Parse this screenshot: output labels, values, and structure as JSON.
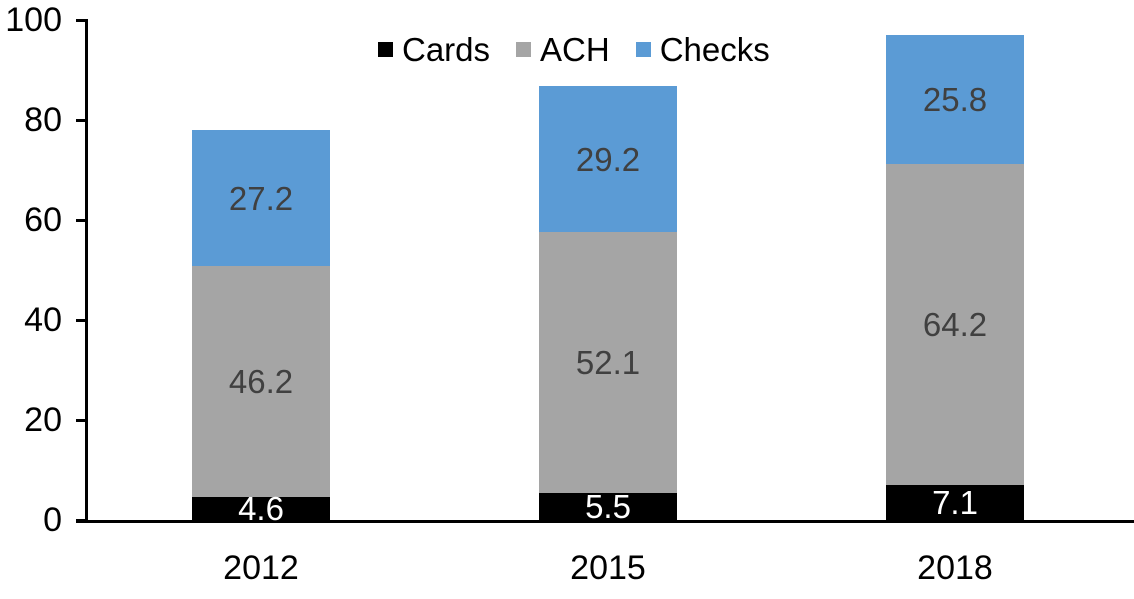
{
  "chart_data": {
    "type": "bar",
    "stacked": true,
    "title": "",
    "categories": [
      "2012",
      "2015",
      "2018"
    ],
    "series": [
      {
        "name": "Cards",
        "color": "#000000",
        "label_color": "#FFFFFF",
        "values": [
          4.6,
          5.5,
          7.1
        ]
      },
      {
        "name": "ACH",
        "color": "#A5A5A5",
        "label_color": "#404040",
        "values": [
          46.2,
          52.1,
          64.2
        ]
      },
      {
        "name": "Checks",
        "color": "#5B9BD5",
        "label_color": "#404040",
        "values": [
          27.2,
          29.2,
          25.8
        ]
      }
    ],
    "data_labels": {
      "Cards": [
        "4.6",
        "5.5",
        "7.1"
      ],
      "ACH": [
        "46.2",
        "52.1",
        "64.2"
      ],
      "Checks": [
        "27.2",
        "29.2",
        "25.8"
      ]
    },
    "y_axis": {
      "min": 0,
      "max": 100,
      "tick_step": 20,
      "ticks": [
        "0",
        "20",
        "40",
        "60",
        "80",
        "100"
      ]
    },
    "x_axis": {
      "labels": [
        "2012",
        "2015",
        "2018"
      ]
    },
    "legend": {
      "position": "top",
      "entries": [
        "Cards",
        "ACH",
        "Checks"
      ]
    },
    "grid": "off",
    "axis_color": "#000000",
    "background_color": "#FFFFFF"
  }
}
